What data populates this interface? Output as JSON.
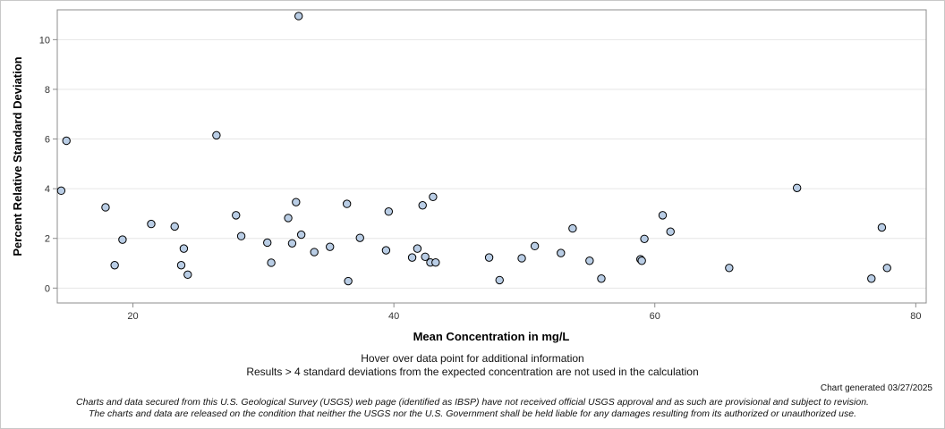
{
  "chart_data": {
    "type": "scatter",
    "title": "",
    "xlabel": "Mean Concentration in mg/L",
    "ylabel": "Percent Relative Standard Deviation",
    "xlim": [
      14.2,
      80.8
    ],
    "ylim": [
      -0.6,
      11.2
    ],
    "x_ticks": [
      20,
      40,
      60,
      80
    ],
    "y_ticks": [
      0,
      2,
      4,
      6,
      8,
      10
    ],
    "grid": "horizontal",
    "points": [
      {
        "x": 14.5,
        "y": 3.92
      },
      {
        "x": 14.9,
        "y": 5.93
      },
      {
        "x": 17.9,
        "y": 3.25
      },
      {
        "x": 18.6,
        "y": 0.92
      },
      {
        "x": 19.2,
        "y": 1.95
      },
      {
        "x": 21.4,
        "y": 2.58
      },
      {
        "x": 23.2,
        "y": 2.48
      },
      {
        "x": 23.7,
        "y": 0.92
      },
      {
        "x": 23.9,
        "y": 1.59
      },
      {
        "x": 24.2,
        "y": 0.54
      },
      {
        "x": 26.4,
        "y": 6.15
      },
      {
        "x": 27.9,
        "y": 2.93
      },
      {
        "x": 28.3,
        "y": 2.09
      },
      {
        "x": 30.3,
        "y": 1.83
      },
      {
        "x": 30.6,
        "y": 1.02
      },
      {
        "x": 31.9,
        "y": 2.82
      },
      {
        "x": 32.2,
        "y": 1.8
      },
      {
        "x": 32.5,
        "y": 3.46
      },
      {
        "x": 32.7,
        "y": 10.95
      },
      {
        "x": 32.9,
        "y": 2.15
      },
      {
        "x": 33.9,
        "y": 1.45
      },
      {
        "x": 35.1,
        "y": 1.66
      },
      {
        "x": 36.4,
        "y": 3.39
      },
      {
        "x": 36.5,
        "y": 0.28
      },
      {
        "x": 37.4,
        "y": 2.02
      },
      {
        "x": 39.4,
        "y": 1.52
      },
      {
        "x": 39.6,
        "y": 3.08
      },
      {
        "x": 41.4,
        "y": 1.23
      },
      {
        "x": 41.8,
        "y": 1.59
      },
      {
        "x": 42.2,
        "y": 3.33
      },
      {
        "x": 42.4,
        "y": 1.26
      },
      {
        "x": 42.8,
        "y": 1.03
      },
      {
        "x": 43.0,
        "y": 3.67
      },
      {
        "x": 43.2,
        "y": 1.03
      },
      {
        "x": 47.3,
        "y": 1.23
      },
      {
        "x": 48.1,
        "y": 0.32
      },
      {
        "x": 49.8,
        "y": 1.2
      },
      {
        "x": 50.8,
        "y": 1.69
      },
      {
        "x": 52.8,
        "y": 1.41
      },
      {
        "x": 53.7,
        "y": 2.4
      },
      {
        "x": 55.0,
        "y": 1.1
      },
      {
        "x": 55.9,
        "y": 0.38
      },
      {
        "x": 58.9,
        "y": 1.16
      },
      {
        "x": 59.0,
        "y": 1.1
      },
      {
        "x": 59.2,
        "y": 1.98
      },
      {
        "x": 60.6,
        "y": 2.93
      },
      {
        "x": 61.2,
        "y": 2.27
      },
      {
        "x": 65.7,
        "y": 0.81
      },
      {
        "x": 70.9,
        "y": 4.03
      },
      {
        "x": 76.6,
        "y": 0.38
      },
      {
        "x": 77.4,
        "y": 2.44
      },
      {
        "x": 77.8,
        "y": 0.81
      }
    ],
    "marker": {
      "fill": "#b9cde5",
      "stroke": "#000000"
    }
  },
  "notes": {
    "hover": "Hover over data point for additional information",
    "results": "Results > 4 standard deviations from the expected concentration are not used in the calculation",
    "generated": "Chart generated 03/27/2025",
    "disclaimer_line1": "Charts and data secured from this U.S. Geological Survey (USGS) web page (identified as IBSP) have not received official USGS approval and as such are provisional and subject to revision.",
    "disclaimer_line2": "The charts and data are released on the condition that neither the USGS nor the U.S. Government shall be held liable for any damages resulting from its authorized or unauthorized use."
  },
  "colors": {
    "grid": "#e6e6e6",
    "axis": "#8c8c8c"
  }
}
